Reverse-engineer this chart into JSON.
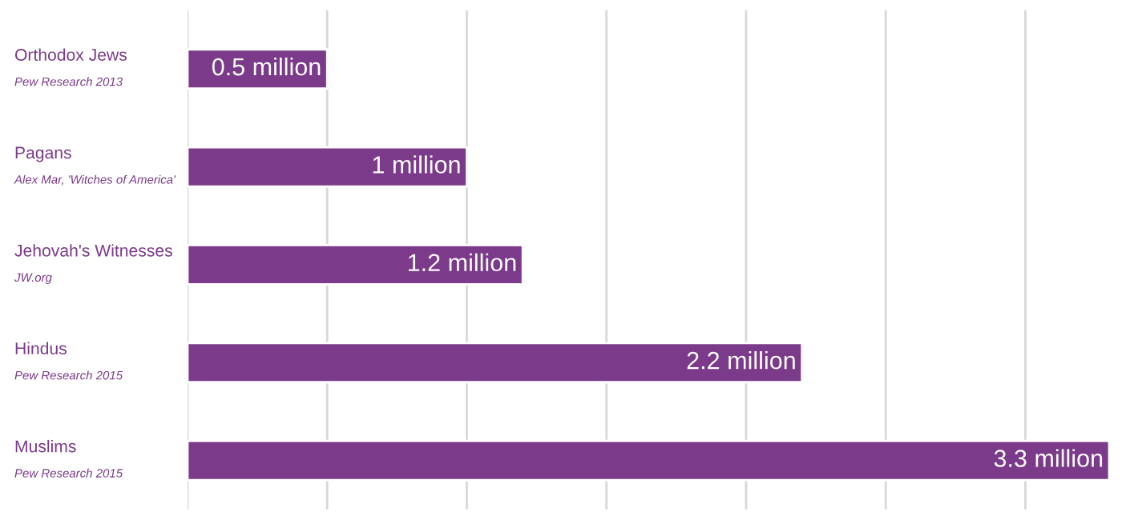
{
  "chart_data": {
    "type": "bar",
    "orientation": "horizontal",
    "categories": [
      "Orthodox Jews\nPew Research 2013",
      "Pagans\nAlex Mar, 'Witches of America'",
      "Jehovah's Witnesses\nJW.org",
      "Hindus\nPew Research 2015",
      "Muslims\nPew Research 2015"
    ],
    "values": [
      0.5,
      1,
      1.2,
      2.2,
      3.3
    ],
    "value_labels": [
      "0.5 million",
      "1 million",
      "1.2 million",
      "2.2 million",
      "3.3 million"
    ],
    "color": "#7b3a8a",
    "xlim": [
      0,
      3.3
    ],
    "xticks": [
      {
        "value": 0,
        "label": null
      },
      {
        "value": 0.5,
        "label": null
      },
      {
        "value": 1,
        "label": null
      },
      {
        "value": 1.5,
        "label": null
      },
      {
        "value": 2,
        "label": null
      },
      {
        "value": 2.5,
        "label": null
      },
      {
        "value": 3,
        "label": null
      }
    ],
    "grid": "x",
    "tick_labels": "y",
    "legend": false
  }
}
